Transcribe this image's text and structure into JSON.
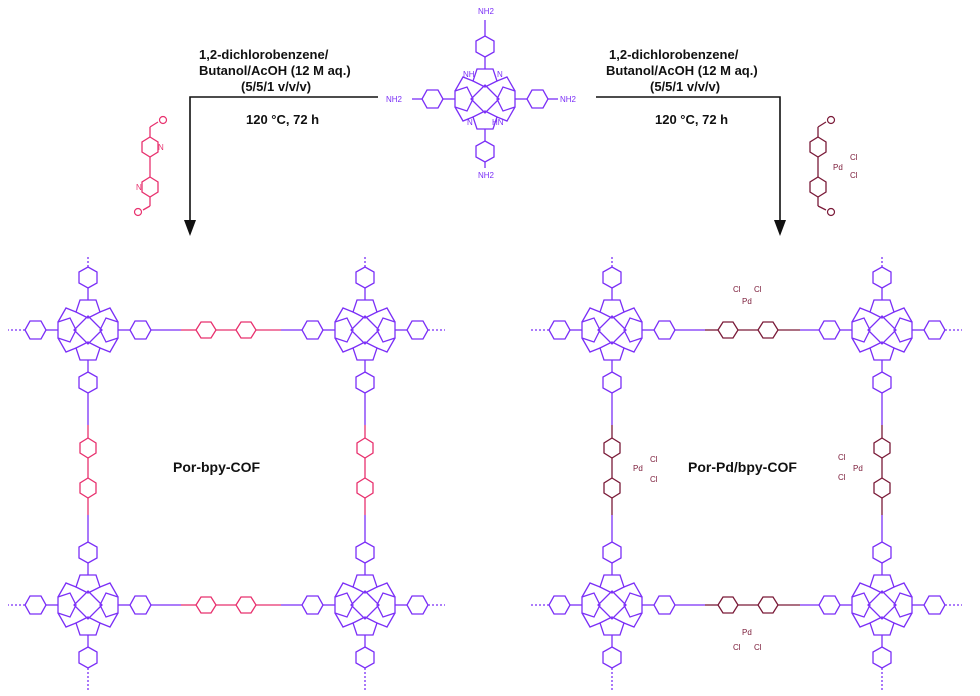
{
  "colors": {
    "porphyrin": "#7b2ff7",
    "bipyridine": "#e8316e",
    "pd_bipyridine": "#7a1a38",
    "text": "#111111"
  },
  "monomer": {
    "amine_label": "NH2",
    "nh_label": "NH",
    "hn_label": "HN",
    "n_label": "N"
  },
  "reaction_left": {
    "solvent_line1": "1,2-dichlorobenzene/",
    "solvent_line2": "Butanol/AcOH (12 M aq.)",
    "ratio": "(5/5/1 v/v/v)",
    "conditions": "120 °C, 72 h"
  },
  "reaction_right": {
    "solvent_line1": "1,2-dichlorobenzene/",
    "solvent_line2": "Butanol/AcOH (12 M aq.)",
    "ratio": "(5/5/1 v/v/v)",
    "conditions": "120 °C, 72 h"
  },
  "linker_right": {
    "metal": "Pd",
    "ligand": "Cl"
  },
  "products": {
    "left_name": "Por-bpy-COF",
    "right_name": "Por-Pd/bpy-COF"
  }
}
